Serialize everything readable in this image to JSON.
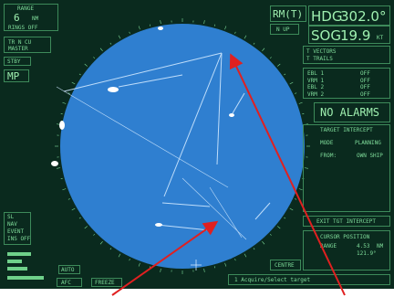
{
  "left_panel": {
    "range_label": "RANGE",
    "range_value": "6",
    "range_unit": "NM",
    "rings_label": "RINGS OFF",
    "mode_line1": "TR N CU",
    "mode_line2": "MASTER",
    "stby_label": "STBY",
    "mp_label": "MP",
    "lower_label1": "SL",
    "lower_label2": "NAV",
    "lower_label3": "EVENT",
    "lower_label4": "INS OFF",
    "auto_label": "AUTO",
    "afc_label": "AFC",
    "freeze_label": "FREEZE"
  },
  "header": {
    "mode": "RM(T)",
    "hdg_label": "HDG",
    "hdg_value": "302.0°",
    "sog_label": "SOG",
    "sog_value": "19.9",
    "sog_unit": "KT",
    "n_up": "N UP"
  },
  "right_panel": {
    "vectors": "T VECTORS",
    "trails": "T TRAILS",
    "ebl_rows": [
      {
        "label": "EBL 1",
        "value": "OFF"
      },
      {
        "label": "VRM 1",
        "value": "OFF"
      },
      {
        "label": "EBL 2",
        "value": "OFF"
      },
      {
        "label": "VRM 2",
        "value": "OFF"
      }
    ],
    "alarms_title": "NO ALARMS",
    "target_intercept": "TARGET INTERCEPT",
    "mode_label": "MODE",
    "mode_value": "PLANNING",
    "from_label": "FROM:",
    "own_ship": "OWN SHIP",
    "exit_label": "EXIT TGT INTERCEPT",
    "cursor_position": "CURSOR POSITION",
    "range_label": "RANGE",
    "range_value": "4.53",
    "range_unit": "NM",
    "bearing_value": "121.9°"
  },
  "bottom": {
    "centre_label": "CENTRE",
    "status_text": "1 Acquire/Select target"
  },
  "colors": {
    "radar_blue": "#2f7fd0",
    "phosphor": "#7fdc9a",
    "arrow": "#e02020"
  }
}
